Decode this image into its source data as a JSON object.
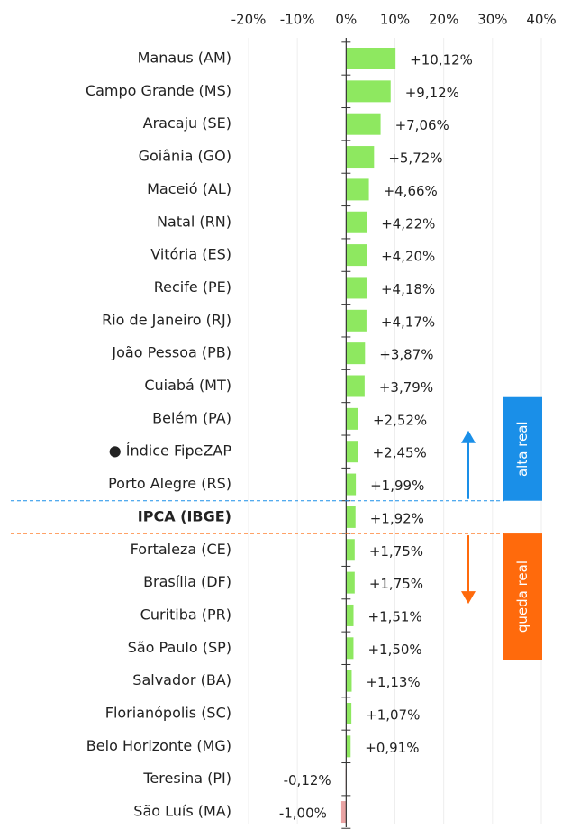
{
  "chart_data": {
    "type": "hbar",
    "categories": [
      "Manaus (AM)",
      "Campo Grande (MS)",
      "Aracaju (SE)",
      "Goiânia (GO)",
      "Maceió (AL)",
      "Natal (RN)",
      "Vitória (ES)",
      "Recife (PE)",
      "Rio de Janeiro (RJ)",
      "João Pessoa (PB)",
      "Cuiabá (MT)",
      "Belém (PA)",
      "● Índice FipeZAP",
      "Porto Alegre (RS)",
      "IPCA (IBGE)",
      "Fortaleza (CE)",
      "Brasília (DF)",
      "Curitiba (PR)",
      "São Paulo (SP)",
      "Salvador (BA)",
      "Florianópolis (SC)",
      "Belo Horizonte (MG)",
      "Teresina (PI)",
      "São Luís (MA)"
    ],
    "values": [
      10.12,
      9.12,
      7.06,
      5.72,
      4.66,
      4.22,
      4.2,
      4.18,
      4.17,
      3.87,
      3.79,
      2.52,
      2.45,
      1.99,
      1.92,
      1.75,
      1.75,
      1.51,
      1.5,
      1.13,
      1.07,
      0.91,
      -0.12,
      -1.0
    ],
    "value_labels": [
      "+10,12%",
      "+9,12%",
      "+7,06%",
      "+5,72%",
      "+4,66%",
      "+4,22%",
      "+4,20%",
      "+4,18%",
      "+4,17%",
      "+3,87%",
      "+3,79%",
      "+2,52%",
      "+2,45%",
      "+1,99%",
      "+1,92%",
      "+1,75%",
      "+1,75%",
      "+1,51%",
      "+1,50%",
      "+1,13%",
      "+1,07%",
      "+0,91%",
      "-0,12%",
      "-1,00%"
    ],
    "color": "#8ee860",
    "negative_color": "#e9a3a3",
    "bold_index": 14,
    "xlim": [
      -20,
      40
    ],
    "xticks": [
      {
        "value": -20,
        "label": "-20%"
      },
      {
        "value": -10,
        "label": "-10%"
      },
      {
        "value": 0,
        "label": "0%"
      },
      {
        "value": 10,
        "label": "10%"
      },
      {
        "value": 20,
        "label": "20%"
      },
      {
        "value": 30,
        "label": "30%"
      },
      {
        "value": 40,
        "label": "40%"
      }
    ],
    "grid": true,
    "annotations": [
      {
        "text": "alta real",
        "color": "#1a8fe8"
      },
      {
        "text": "queda real",
        "color": "#ff6a0c"
      }
    ]
  }
}
